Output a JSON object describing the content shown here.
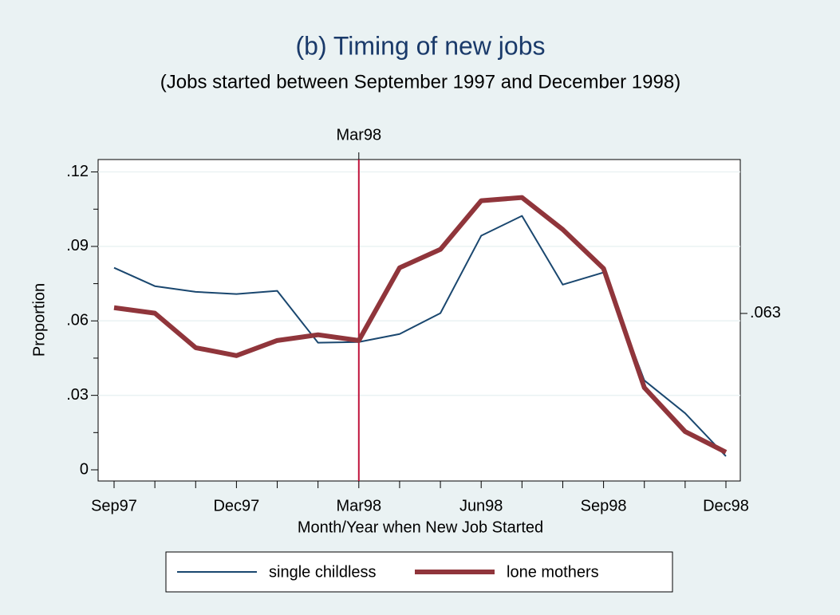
{
  "chart_data": {
    "type": "line",
    "title": "(b) Timing of new jobs",
    "subtitle": "(Jobs started between September 1997 and December 1998)",
    "x_label": "Month/Year when New Job Started",
    "y_label": "Proportion",
    "categories": [
      "Sep97",
      null,
      null,
      "Dec97",
      null,
      null,
      "Mar98",
      null,
      null,
      "Jun98",
      null,
      null,
      "Sep98",
      null,
      null,
      "Dec98"
    ],
    "series": [
      {
        "name": "single childless",
        "color": "#1a476f",
        "width": 2,
        "values": [
          0.0814,
          0.074,
          0.0717,
          0.0708,
          0.0721,
          0.0512,
          0.0515,
          0.0547,
          0.0631,
          0.0943,
          0.1023,
          0.0746,
          0.0795,
          0.036,
          0.0228,
          0.0055
        ]
      },
      {
        "name": "lone mothers",
        "color": "#90353b",
        "width": 6,
        "values": [
          0.0653,
          0.0631,
          0.0492,
          0.046,
          0.0521,
          0.0544,
          0.0521,
          0.0814,
          0.0888,
          0.1084,
          0.1097,
          0.0968,
          0.0811,
          0.0331,
          0.0154,
          0.0071
        ]
      }
    ],
    "ylim": [
      -0.0045,
      0.125
    ],
    "yticks": [
      0,
      {
        "value": 0.03,
        "label": ".03"
      },
      {
        "value": 0.06,
        "label": ".06"
      },
      {
        "value": 0.09,
        "label": ".09"
      },
      {
        "value": 0.12,
        "label": ".12"
      }
    ],
    "yticks_minor": [
      0.015,
      0.045,
      0.075,
      0.105
    ],
    "y2lim": [
      -0.0045,
      0.125
    ],
    "y2ticks": [
      {
        "value": 0.063,
        "label": ".063"
      }
    ],
    "vline": {
      "x": "Mar98",
      "label": "Mar98",
      "color": "#c0143c"
    },
    "grid": true,
    "legend": "bottom"
  }
}
